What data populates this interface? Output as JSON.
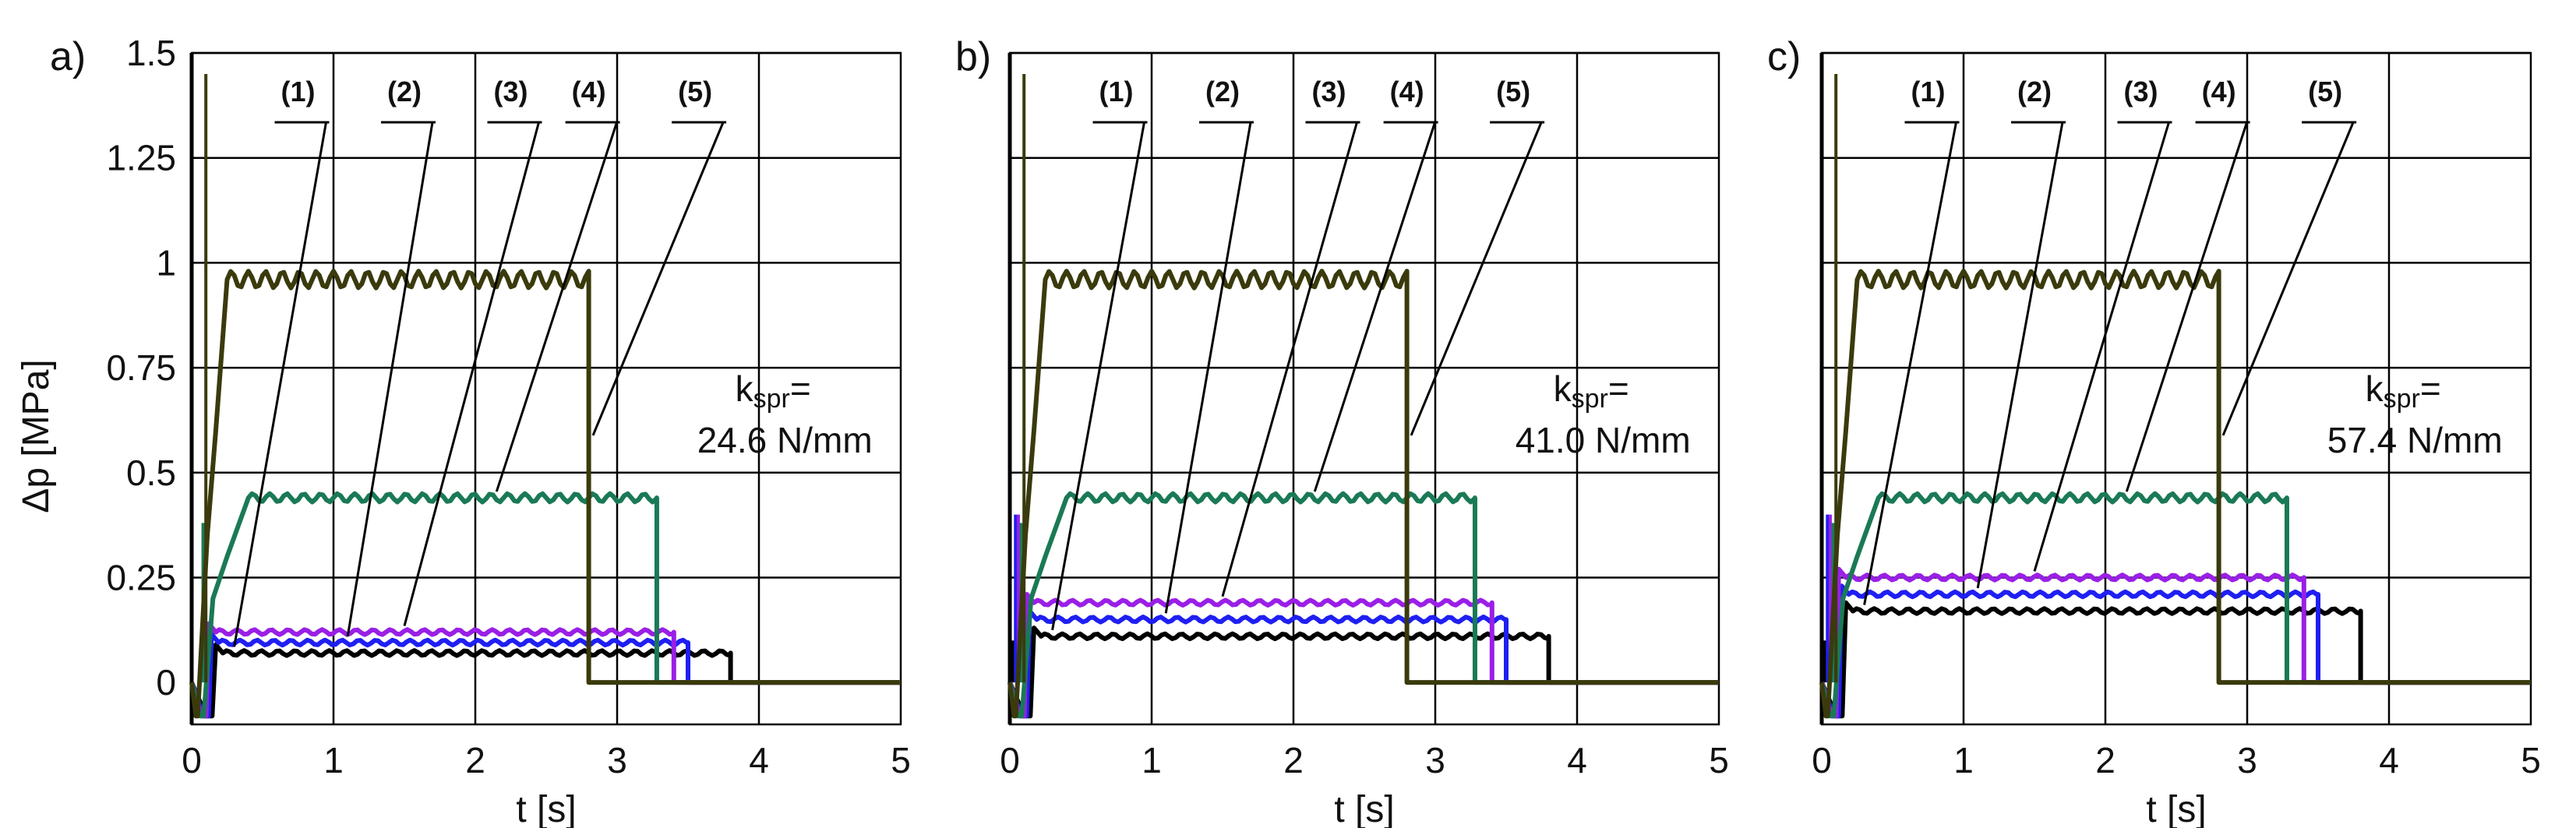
{
  "figure": {
    "y_axis_label": "Δp [MPa]",
    "kspr_label": "k",
    "kspr_subscript": "spr",
    "kspr_equals": "="
  },
  "chart_data": [
    {
      "type": "line",
      "panel_label": "a)",
      "xlabel": "t [s]",
      "ylabel": "Δp [MPa]",
      "xlim": [
        0,
        5
      ],
      "ylim": [
        -0.1,
        1.5
      ],
      "x_ticks": [
        "0",
        "1",
        "2",
        "3",
        "4",
        "5"
      ],
      "y_ticks": [
        "0",
        "0.25",
        "0.5",
        "0.75",
        "1",
        "1.25",
        "1.5"
      ],
      "grid": true,
      "annotation": "24.6 N/mm",
      "series": [
        {
          "name": "(1)",
          "color": "#000000",
          "level": 0.07,
          "t_start": 0.17,
          "t_end": 3.8
        },
        {
          "name": "(2)",
          "color": "#1f1ff2",
          "level": 0.095,
          "t_start": 0.14,
          "t_end": 3.5
        },
        {
          "name": "(3)",
          "color": "#9a1fe6",
          "level": 0.12,
          "t_start": 0.12,
          "t_end": 3.4
        },
        {
          "name": "(4)",
          "color": "#1a7a55",
          "level": 0.44,
          "t_start": 0.1,
          "t_end": 3.28
        },
        {
          "name": "(5)",
          "color": "#3a3a0d",
          "level": 0.96,
          "t_start": 0.05,
          "t_end": 2.8
        }
      ]
    },
    {
      "type": "line",
      "panel_label": "b)",
      "xlabel": "t [s]",
      "ylabel": "",
      "xlim": [
        0,
        5
      ],
      "ylim": [
        -0.1,
        1.5
      ],
      "x_ticks": [
        "0",
        "1",
        "2",
        "3",
        "4",
        "5"
      ],
      "y_ticks": [],
      "grid": true,
      "annotation": "41.0 N/mm",
      "series": [
        {
          "name": "(1)",
          "color": "#000000",
          "level": 0.11,
          "t_start": 0.17,
          "t_end": 3.8
        },
        {
          "name": "(2)",
          "color": "#1f1ff2",
          "level": 0.15,
          "t_start": 0.14,
          "t_end": 3.5
        },
        {
          "name": "(3)",
          "color": "#9a1fe6",
          "level": 0.19,
          "t_start": 0.12,
          "t_end": 3.4
        },
        {
          "name": "(4)",
          "color": "#1a7a55",
          "level": 0.44,
          "t_start": 0.1,
          "t_end": 3.28
        },
        {
          "name": "(5)",
          "color": "#3a3a0d",
          "level": 0.96,
          "t_start": 0.05,
          "t_end": 2.8
        }
      ]
    },
    {
      "type": "line",
      "panel_label": "c)",
      "xlabel": "t [s]",
      "ylabel": "",
      "xlim": [
        0,
        5
      ],
      "ylim": [
        -0.1,
        1.5
      ],
      "x_ticks": [
        "0",
        "1",
        "2",
        "3",
        "4",
        "5"
      ],
      "y_ticks": [],
      "grid": true,
      "annotation": "57.4 N/mm",
      "series": [
        {
          "name": "(1)",
          "color": "#000000",
          "level": 0.17,
          "t_start": 0.17,
          "t_end": 3.8
        },
        {
          "name": "(2)",
          "color": "#1f1ff2",
          "level": 0.21,
          "t_start": 0.14,
          "t_end": 3.5
        },
        {
          "name": "(3)",
          "color": "#9a1fe6",
          "level": 0.25,
          "t_start": 0.12,
          "t_end": 3.4
        },
        {
          "name": "(4)",
          "color": "#1a7a55",
          "level": 0.44,
          "t_start": 0.1,
          "t_end": 3.28
        },
        {
          "name": "(5)",
          "color": "#3a3a0d",
          "level": 0.96,
          "t_start": 0.05,
          "t_end": 2.8
        }
      ]
    }
  ]
}
